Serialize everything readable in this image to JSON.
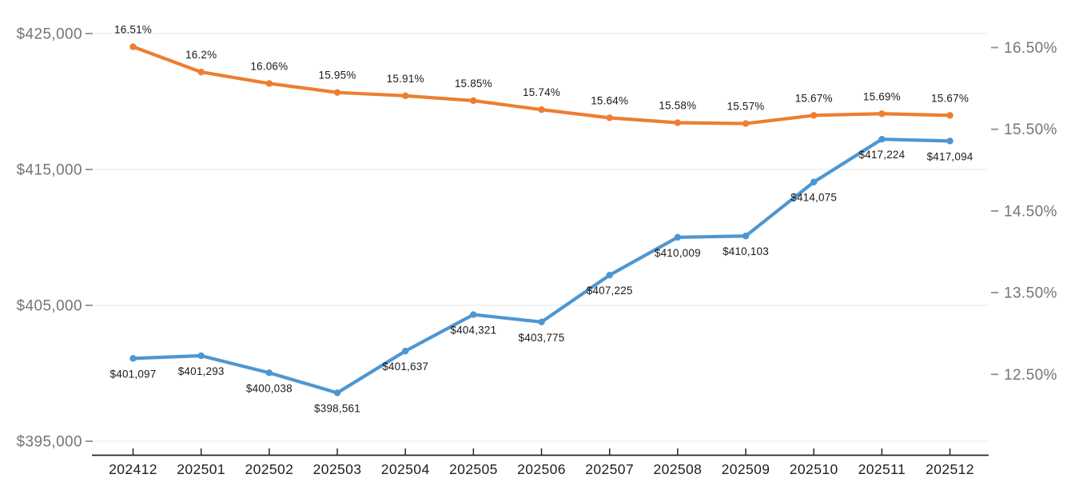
{
  "chart_data": {
    "type": "line",
    "title": "",
    "legend": "none",
    "grid": "horizontal (at left-axis ticks only)",
    "categories": [
      "202412",
      "202501",
      "202502",
      "202503",
      "202504",
      "202505",
      "202506",
      "202507",
      "202508",
      "202509",
      "202510",
      "202511",
      "202512"
    ],
    "series": [
      {
        "name": "dollar-value",
        "axis": "left",
        "color": "#4D96D2",
        "values": [
          401097,
          401293,
          400038,
          398561,
          401637,
          404321,
          403775,
          407225,
          410009,
          410103,
          414075,
          417224,
          417094
        ],
        "labels": [
          "$401,097",
          "$401,293",
          "$400,038",
          "$398,561",
          "$401,637",
          "$404,321",
          "$403,775",
          "$407,225",
          "$410,009",
          "$410,103",
          "$414,075",
          "$417,224",
          "$417,094"
        ],
        "label_position": "below"
      },
      {
        "name": "percent-rate",
        "axis": "right",
        "color": "#ED7E32",
        "values": [
          16.51,
          16.2,
          16.06,
          15.95,
          15.91,
          15.85,
          15.74,
          15.64,
          15.58,
          15.57,
          15.67,
          15.69,
          15.67
        ],
        "labels": [
          "16.51%",
          "16.2%",
          "16.06%",
          "15.95%",
          "15.91%",
          "15.85%",
          "15.74%",
          "15.64%",
          "15.58%",
          "15.57%",
          "15.67%",
          "15.69%",
          "15.67%"
        ],
        "label_position": "above"
      }
    ],
    "left_axis": {
      "tick_labels": [
        "$425,000",
        "$415,000",
        "$405,000",
        "$395,000"
      ],
      "tick_values": [
        425000,
        415000,
        405000,
        395000
      ],
      "min": 395000,
      "max": 425000,
      "side": "left"
    },
    "right_axis": {
      "tick_labels": [
        "16.50%",
        "15.50%",
        "14.50%",
        "13.50%",
        "12.50%"
      ],
      "tick_values": [
        16.5,
        15.5,
        14.5,
        13.5,
        12.5
      ],
      "min": 12.5,
      "max": 16.5,
      "side": "right"
    },
    "colors": {
      "grid_line": "#e8e8e8",
      "axis_line": "#262626",
      "y_tick_text": "#757575",
      "x_tick_text": "#1f1f1f",
      "data_label_text": "#1a1a1a",
      "background": "#ffffff"
    }
  }
}
